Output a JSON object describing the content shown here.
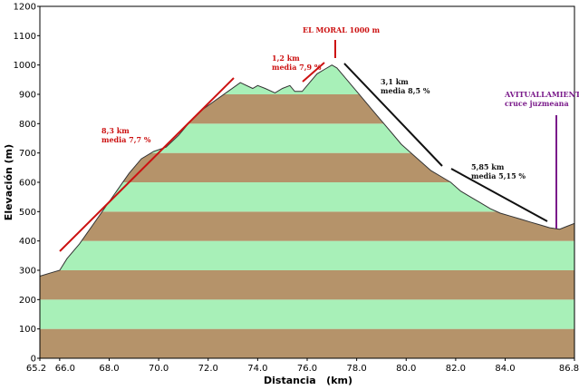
{
  "chart_data": {
    "type": "area",
    "title": "",
    "xlabel": "Distancia   (km)",
    "ylabel": "Elevación (m)",
    "xlim": [
      65.2,
      86.8
    ],
    "ylim": [
      0,
      1200
    ],
    "x_tick_labels": [
      "65.2",
      "66.0",
      "68.0",
      "70.0",
      "72.0",
      "74.0",
      "76.0",
      "78.0",
      "80.0",
      "82.0",
      "84.0",
      "86.8"
    ],
    "y_tick_labels": [
      "0",
      "100",
      "200",
      "300",
      "400",
      "500",
      "600",
      "700",
      "800",
      "900",
      "1000",
      "1100",
      "1200"
    ],
    "band_colors": [
      "#b5936a",
      "#a8f0b8"
    ],
    "series": [
      {
        "x": [
          65.2,
          65.6,
          66.0,
          66.3,
          66.8,
          67.3,
          67.8,
          68.3,
          68.8,
          69.3,
          69.8,
          70.3,
          70.8,
          71.3,
          71.8,
          72.3,
          72.8,
          73.3,
          73.8,
          74.0,
          74.3,
          74.7,
          75.0,
          75.3,
          75.5,
          75.8,
          76.1,
          76.4,
          76.7,
          77.0,
          77.2,
          77.5,
          77.8,
          78.2,
          78.6,
          79.0,
          79.4,
          79.8,
          80.2,
          80.6,
          81.0,
          81.4,
          81.8,
          82.2,
          82.6,
          83.0,
          83.4,
          83.8,
          84.2,
          84.6,
          85.0,
          85.4,
          85.8,
          86.2,
          86.5,
          86.8
        ],
        "y": [
          280,
          290,
          300,
          340,
          390,
          450,
          510,
          570,
          630,
          680,
          705,
          720,
          760,
          810,
          850,
          880,
          910,
          940,
          920,
          930,
          920,
          905,
          920,
          930,
          910,
          910,
          940,
          970,
          985,
          1000,
          990,
          960,
          930,
          890,
          850,
          810,
          770,
          730,
          700,
          670,
          640,
          620,
          600,
          570,
          550,
          530,
          510,
          495,
          485,
          475,
          465,
          455,
          445,
          440,
          450,
          460
        ]
      }
    ],
    "annotations": [
      {
        "text": "EL MORAL 1000 m",
        "color": "#cc1111"
      },
      {
        "text": "8,3 km",
        "text2": "media 7,7 %",
        "color": "#cc1111"
      },
      {
        "text": "1,2 km",
        "text2": "media 7,9 %",
        "color": "#cc1111"
      },
      {
        "text": "3,1 km",
        "text2": "media 8,5 %",
        "color": "#111111"
      },
      {
        "text": "5,85 km",
        "text2": "media 5,15 %",
        "color": "#111111"
      },
      {
        "text": "AVITUALLAMIENTO",
        "text2": "cruce juzmeana",
        "color": "#7a1a8a"
      }
    ]
  }
}
